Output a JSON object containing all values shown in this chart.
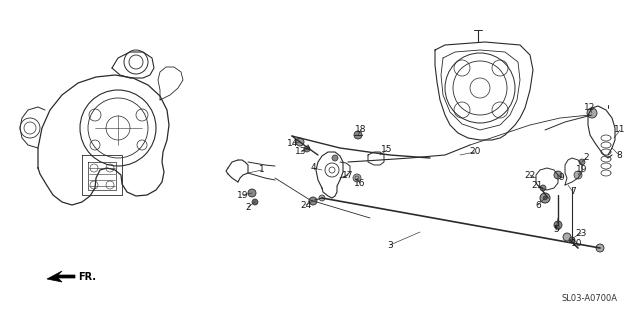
{
  "bg_color": "#ffffff",
  "diagram_code": "SL03-A0700A",
  "text_color": "#1a1a1a",
  "label_fontsize": 6.5,
  "line_color": "#2a2a2a",
  "figsize": [
    6.4,
    3.15
  ],
  "dpi": 100
}
